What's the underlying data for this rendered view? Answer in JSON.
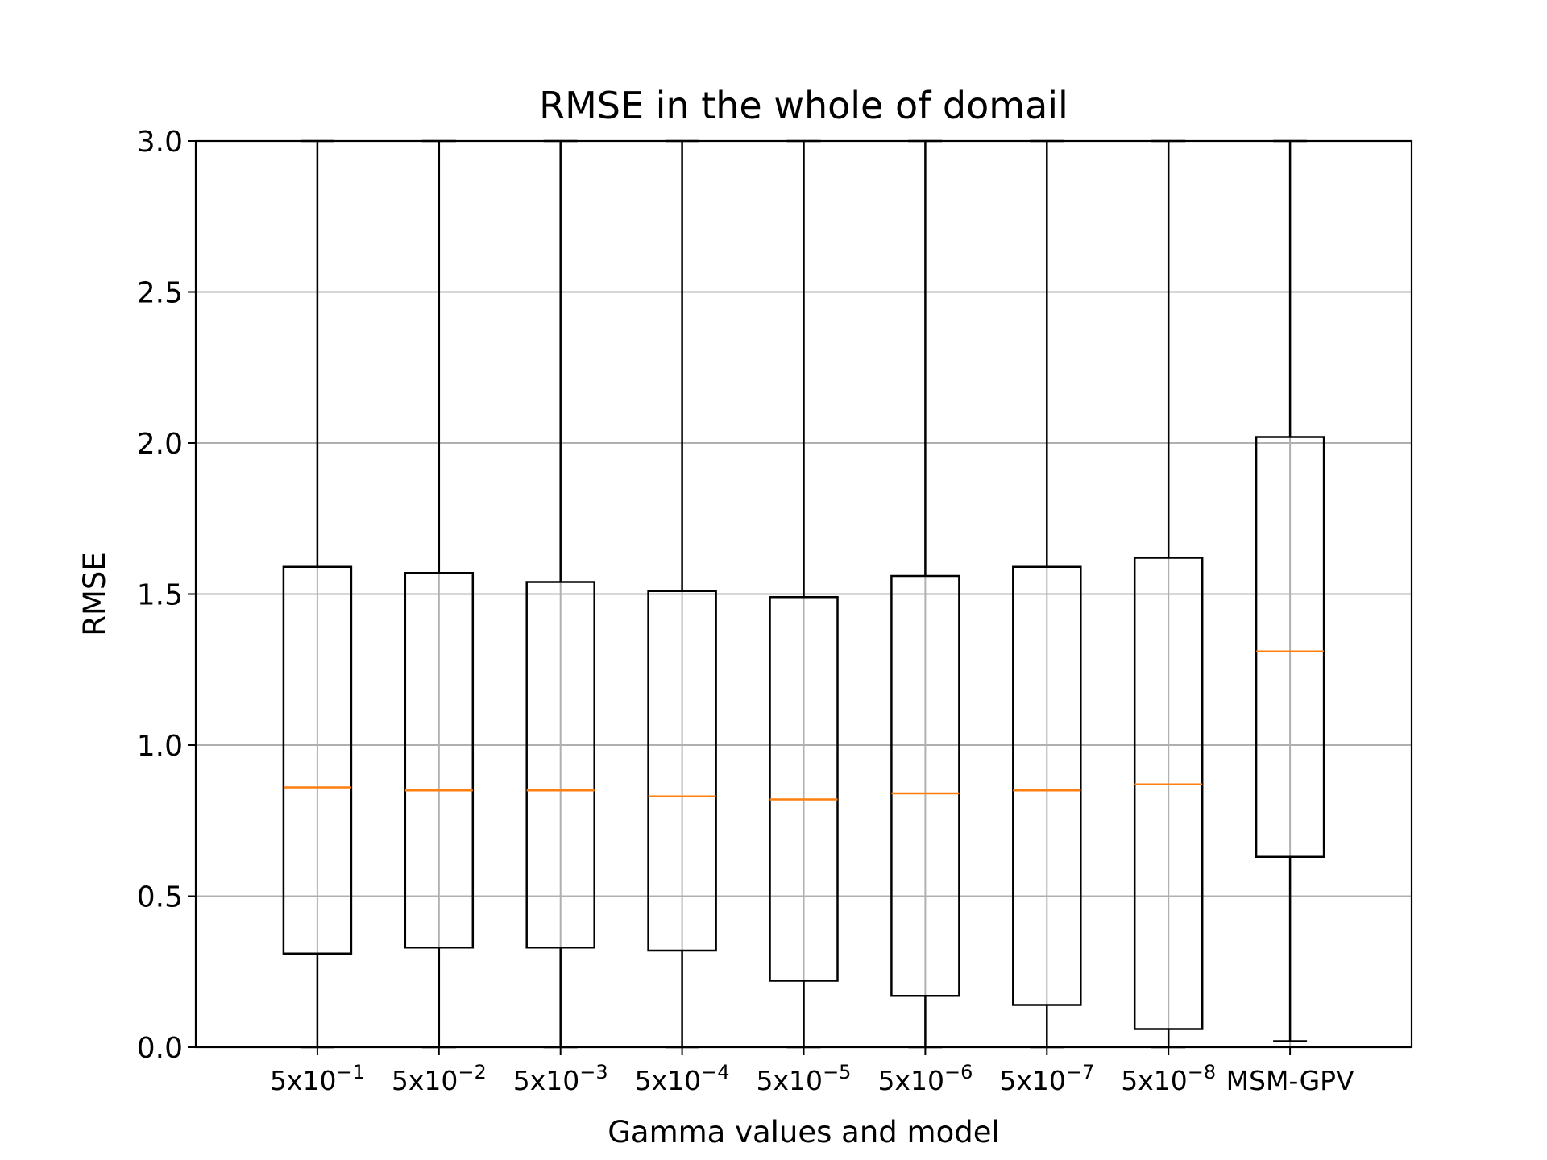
{
  "chart_data": {
    "type": "box",
    "title": "RMSE in the whole of domail",
    "xlabel": "Gamma values and model",
    "ylabel": "RMSE",
    "ylim": [
      0,
      3.0
    ],
    "yticks": [
      0.0,
      0.5,
      1.0,
      1.5,
      2.0,
      2.5,
      3.0
    ],
    "ytick_labels": [
      "0.0",
      "0.5",
      "1.0",
      "1.5",
      "2.0",
      "2.5",
      "3.0"
    ],
    "grid": true,
    "categories": [
      {
        "base": "5x10",
        "exp": "−1"
      },
      {
        "base": "5x10",
        "exp": "−2"
      },
      {
        "base": "5x10",
        "exp": "−3"
      },
      {
        "base": "5x10",
        "exp": "−4"
      },
      {
        "base": "5x10",
        "exp": "−5"
      },
      {
        "base": "5x10",
        "exp": "−6"
      },
      {
        "base": "5x10",
        "exp": "−7"
      },
      {
        "base": "5x10",
        "exp": "−8"
      },
      {
        "base": "MSM-GPV",
        "exp": ""
      }
    ],
    "boxes": [
      {
        "whisker_low": 0.0,
        "q1": 0.31,
        "median": 0.86,
        "q3": 1.59,
        "whisker_high": 3.0
      },
      {
        "whisker_low": 0.0,
        "q1": 0.33,
        "median": 0.85,
        "q3": 1.57,
        "whisker_high": 3.0
      },
      {
        "whisker_low": 0.0,
        "q1": 0.33,
        "median": 0.85,
        "q3": 1.54,
        "whisker_high": 3.0
      },
      {
        "whisker_low": 0.0,
        "q1": 0.32,
        "median": 0.83,
        "q3": 1.51,
        "whisker_high": 3.0
      },
      {
        "whisker_low": 0.0,
        "q1": 0.22,
        "median": 0.82,
        "q3": 1.49,
        "whisker_high": 3.0
      },
      {
        "whisker_low": 0.0,
        "q1": 0.17,
        "median": 0.84,
        "q3": 1.56,
        "whisker_high": 3.0
      },
      {
        "whisker_low": 0.0,
        "q1": 0.14,
        "median": 0.85,
        "q3": 1.59,
        "whisker_high": 3.0
      },
      {
        "whisker_low": 0.0,
        "q1": 0.06,
        "median": 0.87,
        "q3": 1.62,
        "whisker_high": 3.0
      },
      {
        "whisker_low": 0.02,
        "q1": 0.63,
        "median": 1.31,
        "q3": 2.02,
        "whisker_high": 3.0
      }
    ],
    "colors": {
      "box": "#000000",
      "median": "#ff7f0e",
      "grid": "#b0b0b0"
    }
  }
}
